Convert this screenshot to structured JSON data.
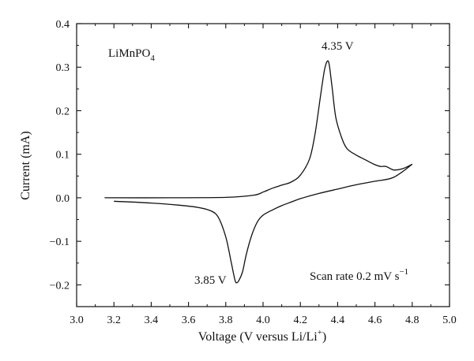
{
  "chart_data": {
    "type": "line",
    "xlabel_main": "Voltage (V versus Li/Li",
    "xlabel_sup": "+",
    "xlabel_end": ")",
    "ylabel": "Current (mA)",
    "xlim": [
      3.0,
      5.0
    ],
    "ylim": [
      -0.25,
      0.4
    ],
    "x_ticks": [
      "3.0",
      "3.2",
      "3.4",
      "3.6",
      "3.8",
      "4.0",
      "4.2",
      "4.4",
      "4.6",
      "4.8",
      "5.0"
    ],
    "y_ticks": [
      "−0.2",
      "−0.1",
      "0.0",
      "0.1",
      "0.2",
      "0.3",
      "0.4"
    ],
    "grid": false,
    "sample_label": {
      "main": "LiMnPO",
      "sub": "4"
    },
    "scan_rate": {
      "main": "Scan rate 0.2 mV s",
      "sup": "−1"
    },
    "annotations": [
      {
        "text": "4.35 V",
        "x": 4.35,
        "y": 0.315
      },
      {
        "text": "3.85 V",
        "x": 3.86,
        "y": -0.195
      }
    ],
    "series": [
      {
        "x": [
          3.15,
          3.5,
          3.8,
          3.95,
          4.0,
          4.05,
          4.1,
          4.15,
          4.2,
          4.25,
          4.28,
          4.31,
          4.33,
          4.345,
          4.355,
          4.37,
          4.39,
          4.42,
          4.45,
          4.5,
          4.55,
          4.6,
          4.63,
          4.66,
          4.7,
          4.75,
          4.8
        ],
        "y": [
          0.0,
          0.0,
          0.001,
          0.006,
          0.013,
          0.022,
          0.029,
          0.036,
          0.052,
          0.09,
          0.15,
          0.24,
          0.295,
          0.314,
          0.305,
          0.255,
          0.185,
          0.14,
          0.113,
          0.098,
          0.087,
          0.076,
          0.072,
          0.072,
          0.064,
          0.067,
          0.077
        ]
      },
      {
        "x": [
          4.8,
          4.7,
          4.6,
          4.5,
          4.4,
          4.3,
          4.2,
          4.15,
          4.1,
          4.05,
          4.0,
          3.97,
          3.94,
          3.91,
          3.89,
          3.87,
          3.86,
          3.85,
          3.83,
          3.8,
          3.76,
          3.72,
          3.65,
          3.55,
          3.4,
          3.2
        ],
        "y": [
          0.077,
          0.047,
          0.038,
          0.03,
          0.02,
          0.01,
          -0.002,
          -0.01,
          -0.018,
          -0.028,
          -0.04,
          -0.055,
          -0.085,
          -0.13,
          -0.17,
          -0.19,
          -0.195,
          -0.19,
          -0.15,
          -0.09,
          -0.045,
          -0.03,
          -0.022,
          -0.017,
          -0.012,
          -0.008
        ]
      }
    ]
  }
}
